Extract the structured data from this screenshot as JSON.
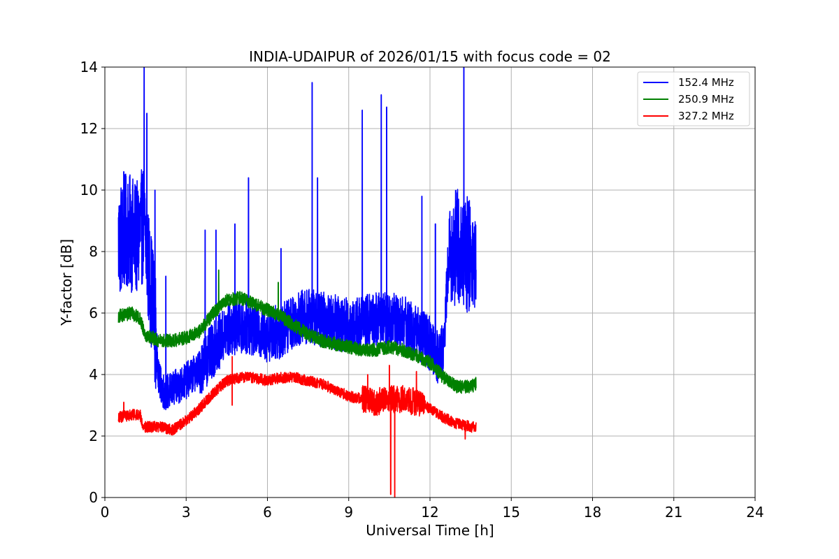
{
  "chart_data": {
    "type": "line",
    "title": "INDIA-UDAIPUR of 2026/01/15 with focus code = 02",
    "xlabel": "Universal Time [h]",
    "ylabel": "Y-factor [dB]",
    "xlim": [
      0,
      24
    ],
    "ylim": [
      0,
      14
    ],
    "xticks": [
      0,
      3,
      6,
      9,
      12,
      15,
      18,
      21,
      24
    ],
    "yticks": [
      0,
      2,
      4,
      6,
      8,
      10,
      12,
      14
    ],
    "grid": true,
    "legend_position": "top-right",
    "series": [
      {
        "name": "152.4 MHz",
        "color": "#0000ff",
        "x": [
          0.5,
          0.8,
          1.2,
          1.45,
          1.6,
          1.8,
          2.0,
          2.2,
          2.5,
          3.0,
          3.5,
          4.0,
          4.5,
          5.0,
          5.5,
          6.0,
          6.5,
          7.0,
          7.5,
          8.0,
          8.5,
          9.0,
          9.5,
          10.0,
          10.5,
          11.0,
          11.5,
          12.0,
          12.3,
          12.5,
          12.7,
          13.0,
          13.3,
          13.7
        ],
        "y": [
          8.3,
          8.7,
          8.4,
          9.0,
          7.5,
          6.2,
          3.8,
          3.4,
          3.5,
          3.8,
          4.2,
          4.8,
          5.4,
          5.6,
          5.5,
          5.3,
          5.4,
          5.8,
          5.9,
          5.8,
          5.7,
          5.6,
          5.7,
          5.8,
          5.8,
          5.7,
          5.4,
          5.0,
          4.6,
          4.8,
          8.0,
          8.2,
          8.0,
          7.6
        ],
        "spikes": [
          [
            0.7,
            10.6
          ],
          [
            1.45,
            14.0
          ],
          [
            1.55,
            12.5
          ],
          [
            1.85,
            10.0
          ],
          [
            2.25,
            7.2
          ],
          [
            3.7,
            8.7
          ],
          [
            4.1,
            8.7
          ],
          [
            4.8,
            8.9
          ],
          [
            5.3,
            10.4
          ],
          [
            6.5,
            8.1
          ],
          [
            7.65,
            13.5
          ],
          [
            7.85,
            10.4
          ],
          [
            9.5,
            12.6
          ],
          [
            10.2,
            13.1
          ],
          [
            10.4,
            12.7
          ],
          [
            11.7,
            9.8
          ],
          [
            12.2,
            8.9
          ],
          [
            13.25,
            14.0
          ]
        ]
      },
      {
        "name": "250.9 MHz",
        "color": "#008000",
        "x": [
          0.5,
          1.0,
          1.3,
          1.5,
          2.0,
          2.5,
          3.0,
          3.5,
          4.0,
          4.5,
          5.0,
          5.5,
          6.0,
          6.5,
          7.0,
          7.5,
          8.0,
          8.5,
          9.0,
          9.5,
          10.0,
          10.5,
          11.0,
          11.5,
          12.0,
          12.5,
          13.0,
          13.5,
          13.7
        ],
        "y": [
          5.9,
          6.0,
          5.8,
          5.3,
          5.1,
          5.1,
          5.2,
          5.4,
          6.0,
          6.4,
          6.5,
          6.3,
          6.1,
          5.9,
          5.6,
          5.3,
          5.1,
          5.0,
          4.9,
          4.8,
          4.8,
          4.9,
          4.8,
          4.6,
          4.4,
          3.9,
          3.6,
          3.6,
          3.7
        ],
        "spikes": [
          [
            4.2,
            7.4
          ],
          [
            6.4,
            7.0
          ]
        ]
      },
      {
        "name": "327.2 MHz",
        "color": "#ff0000",
        "x": [
          0.5,
          1.0,
          1.3,
          1.4,
          2.0,
          2.5,
          3.0,
          3.5,
          4.0,
          4.5,
          5.0,
          5.5,
          6.0,
          6.5,
          7.0,
          7.5,
          8.0,
          8.5,
          9.0,
          9.5,
          10.0,
          10.5,
          11.0,
          11.5,
          12.0,
          12.5,
          13.0,
          13.5,
          13.7
        ],
        "y": [
          2.6,
          2.7,
          2.7,
          2.3,
          2.3,
          2.2,
          2.5,
          2.9,
          3.4,
          3.8,
          3.9,
          3.9,
          3.8,
          3.9,
          3.9,
          3.8,
          3.7,
          3.5,
          3.3,
          3.2,
          3.1,
          3.2,
          3.2,
          3.1,
          2.9,
          2.6,
          2.4,
          2.3,
          2.3
        ],
        "spikes": [
          [
            0.7,
            3.1
          ],
          [
            4.7,
            4.6
          ],
          [
            9.7,
            4.0
          ],
          [
            10.5,
            4.3
          ],
          [
            11.5,
            4.1
          ]
        ],
        "dips": [
          [
            4.7,
            3.0
          ],
          [
            10.55,
            0.1
          ],
          [
            10.7,
            0.0
          ],
          [
            13.3,
            1.9
          ]
        ]
      }
    ]
  }
}
